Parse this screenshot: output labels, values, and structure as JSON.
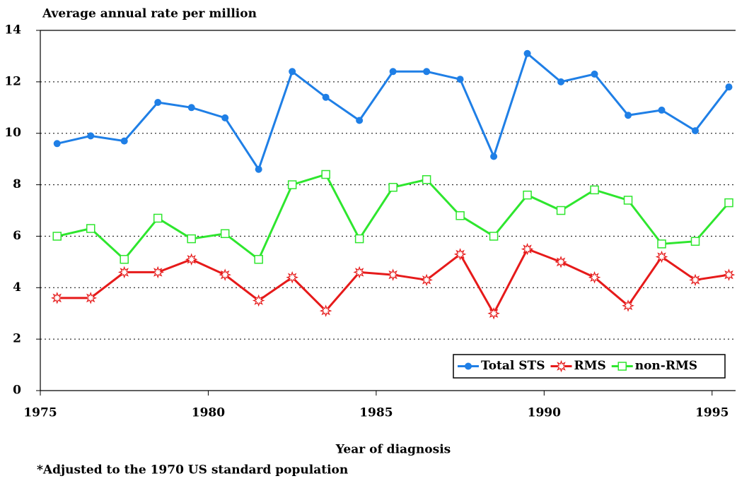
{
  "chart_data": {
    "type": "line",
    "title": "Average annual rate per million",
    "x_label": "Year of diagnosis",
    "footnote": "*Adjusted to the 1970 US standard population",
    "x": [
      1975.5,
      1976.5,
      1977.5,
      1978.5,
      1979.5,
      1980.5,
      1981.5,
      1982.5,
      1983.5,
      1984.5,
      1985.5,
      1986.5,
      1987.5,
      1988.5,
      1989.5,
      1990.5,
      1991.5,
      1992.5,
      1993.5,
      1994.5,
      1995.5
    ],
    "series": [
      {
        "name": "Total STS",
        "color": "#1f7fe6",
        "marker": "circle",
        "values": [
          9.6,
          9.9,
          9.7,
          11.2,
          11.0,
          10.6,
          8.6,
          12.4,
          11.4,
          10.5,
          12.4,
          12.4,
          12.1,
          9.1,
          13.1,
          12.0,
          12.3,
          10.7,
          10.9,
          10.1,
          11.8
        ]
      },
      {
        "name": "RMS",
        "color": "#e61a1a",
        "marker": "star",
        "values": [
          3.6,
          3.6,
          4.6,
          4.6,
          5.1,
          4.5,
          3.5,
          4.4,
          3.1,
          4.6,
          4.5,
          4.3,
          5.3,
          3.0,
          5.5,
          5.0,
          4.4,
          3.3,
          5.2,
          4.3,
          4.5
        ]
      },
      {
        "name": "non-RMS",
        "color": "#2ee62e",
        "marker": "square",
        "values": [
          6.0,
          6.3,
          5.1,
          6.7,
          5.9,
          6.1,
          5.1,
          8.0,
          8.4,
          5.9,
          7.9,
          8.2,
          6.8,
          6.0,
          7.6,
          7.0,
          7.8,
          7.4,
          5.7,
          5.8,
          7.3
        ]
      }
    ],
    "xlim": [
      1975,
      1995.7
    ],
    "xticks": [
      1975,
      1980,
      1985,
      1990,
      1995
    ],
    "ylim": [
      0,
      14
    ],
    "yticks": [
      0,
      2,
      4,
      6,
      8,
      10,
      12,
      14
    ],
    "grid": true,
    "legend": "lower right"
  }
}
